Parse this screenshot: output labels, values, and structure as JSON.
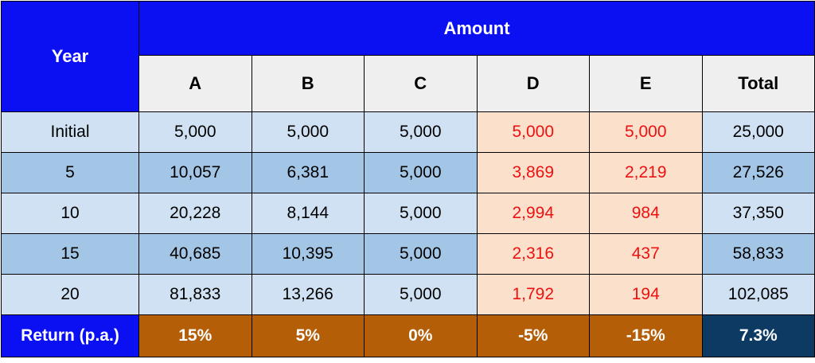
{
  "header": {
    "year_label": "Year",
    "amount_label": "Amount",
    "columns": [
      "A",
      "B",
      "C",
      "D",
      "E",
      "Total"
    ]
  },
  "rows": [
    {
      "year": "Initial",
      "values": [
        "5,000",
        "5,000",
        "5,000",
        "5,000",
        "5,000",
        "25,000"
      ]
    },
    {
      "year": "5",
      "values": [
        "10,057",
        "6,381",
        "5,000",
        "3,869",
        "2,219",
        "27,526"
      ]
    },
    {
      "year": "10",
      "values": [
        "20,228",
        "8,144",
        "5,000",
        "2,994",
        "984",
        "37,350"
      ]
    },
    {
      "year": "15",
      "values": [
        "40,685",
        "10,395",
        "5,000",
        "2,316",
        "437",
        "58,833"
      ]
    },
    {
      "year": "20",
      "values": [
        "81,833",
        "13,266",
        "5,000",
        "1,792",
        "194",
        "102,085"
      ]
    }
  ],
  "returns": {
    "label": "Return (p.a.)",
    "values": [
      "15%",
      "5%",
      "0%",
      "-5%",
      "-15%",
      "7.3%"
    ]
  },
  "colors": {
    "header_blue": "#0a10f2",
    "row_light": "#cfe1f2",
    "row_dark": "#a3c6e6",
    "negative_bg": "#fbe1cc",
    "negative_text": "#ee1111",
    "return_bg": "#b45f07",
    "total_return_bg": "#0d3a63"
  }
}
